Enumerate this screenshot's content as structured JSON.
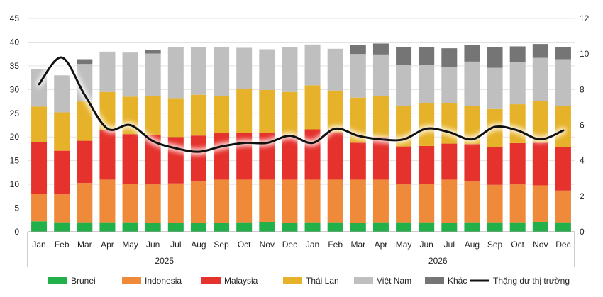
{
  "chart_data": {
    "type": "bar",
    "stacked": true,
    "title": "",
    "categories": [
      "Jan",
      "Feb",
      "Mar",
      "Apr",
      "May",
      "Jun",
      "Jul",
      "Aug",
      "Sep",
      "Oct",
      "Nov",
      "Dec",
      "Jan",
      "Feb",
      "Mar",
      "Apr",
      "May",
      "Jun",
      "Jul",
      "Aug",
      "Sep",
      "Oct",
      "Nov",
      "Dec"
    ],
    "year_groups": [
      {
        "label": "2025",
        "start": 0,
        "end": 11
      },
      {
        "label": "2026",
        "start": 12,
        "end": 23
      }
    ],
    "ylim_left": [
      0,
      45
    ],
    "yticks_left": [
      0,
      5,
      10,
      15,
      20,
      25,
      30,
      35,
      40,
      45
    ],
    "ylim_right": [
      0,
      12
    ],
    "yticks_right": [
      0,
      2,
      4,
      6,
      8,
      10,
      12
    ],
    "grid": true,
    "legend_position": "bottom",
    "series": [
      {
        "name": "Brunei",
        "color": "#22b04b",
        "values": [
          2.2,
          2.0,
          2.0,
          2.0,
          2.0,
          1.8,
          1.9,
          1.9,
          1.9,
          2.0,
          2.1,
          1.9,
          2.0,
          2.0,
          1.8,
          2.0,
          2.0,
          2.0,
          1.9,
          2.0,
          2.0,
          2.0,
          2.1,
          2.0
        ]
      },
      {
        "name": "Indonesia",
        "color": "#ee8a3a",
        "values": [
          5.8,
          5.9,
          8.3,
          9.0,
          8.1,
          8.2,
          8.3,
          8.7,
          9.1,
          9.0,
          8.9,
          9.1,
          9.0,
          9.0,
          9.2,
          9.0,
          8.0,
          8.1,
          9.1,
          8.6,
          7.9,
          8.0,
          7.7,
          6.7
        ]
      },
      {
        "name": "Malaysia",
        "color": "#e5322d",
        "values": [
          10.9,
          9.2,
          8.9,
          10.4,
          10.5,
          10.4,
          9.8,
          9.7,
          9.9,
          9.8,
          9.8,
          9.5,
          10.6,
          10.0,
          7.8,
          9.0,
          8.0,
          8.0,
          7.6,
          7.9,
          8.0,
          8.7,
          9.0,
          9.2
        ]
      },
      {
        "name": "Thái Lan",
        "color": "#e6b22a",
        "values": [
          7.5,
          8.1,
          8.3,
          8.1,
          7.9,
          8.3,
          8.2,
          8.6,
          7.7,
          9.3,
          9.1,
          9.0,
          9.3,
          8.8,
          9.5,
          8.6,
          8.6,
          9.0,
          8.5,
          8.0,
          8.0,
          8.2,
          8.8,
          8.6
        ]
      },
      {
        "name": "Việt Nam",
        "color": "#bfbfbf",
        "values": [
          7.9,
          7.8,
          7.9,
          8.5,
          9.3,
          8.9,
          10.8,
          10.1,
          10.4,
          8.7,
          8.6,
          9.5,
          8.6,
          8.8,
          9.2,
          8.8,
          8.6,
          8.1,
          7.6,
          9.4,
          8.7,
          8.9,
          9.1,
          9.9
        ]
      },
      {
        "name": "Khác",
        "color": "#757575",
        "values": [
          0,
          0,
          1.0,
          0,
          0,
          0.8,
          0,
          0,
          0,
          0,
          0,
          0,
          0,
          0,
          1.9,
          2.3,
          3.8,
          3.7,
          4.0,
          3.5,
          4.3,
          3.3,
          2.9,
          2.5
        ]
      }
    ],
    "line_series": {
      "name": "Thặng dư thị trường",
      "color": "#111111",
      "axis": "right",
      "values": [
        8.3,
        9.8,
        7.7,
        5.8,
        6.0,
        5.1,
        4.7,
        4.5,
        4.8,
        5.0,
        5.0,
        5.4,
        5.0,
        5.8,
        5.4,
        5.2,
        5.2,
        5.8,
        5.6,
        5.2,
        5.9,
        5.7,
        5.2,
        5.7
      ]
    }
  }
}
